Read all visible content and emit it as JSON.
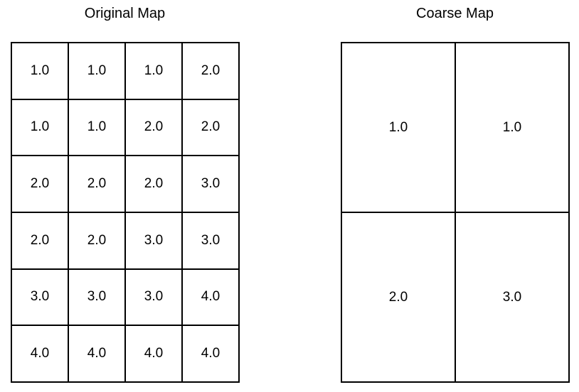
{
  "original_map": {
    "title": "Original Map",
    "rows": [
      [
        "1.0",
        "1.0",
        "1.0",
        "2.0"
      ],
      [
        "1.0",
        "1.0",
        "2.0",
        "2.0"
      ],
      [
        "2.0",
        "2.0",
        "2.0",
        "3.0"
      ],
      [
        "2.0",
        "2.0",
        "3.0",
        "3.0"
      ],
      [
        "3.0",
        "3.0",
        "3.0",
        "4.0"
      ],
      [
        "4.0",
        "4.0",
        "4.0",
        "4.0"
      ]
    ]
  },
  "coarse_map": {
    "title": "Coarse Map",
    "rows": [
      [
        "1.0",
        "1.0"
      ],
      [
        "2.0",
        "3.0"
      ]
    ]
  }
}
